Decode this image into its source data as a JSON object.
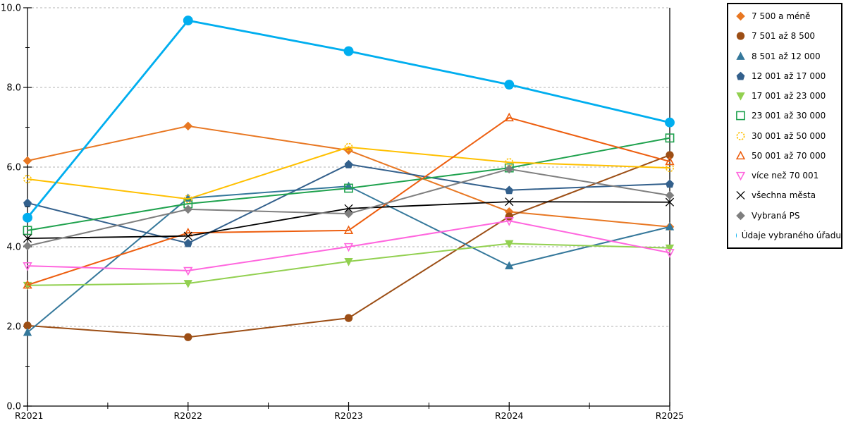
{
  "chart_data": {
    "type": "line",
    "title": "",
    "x_labels": [
      "R2021",
      "R2022",
      "R2023",
      "R2024",
      "R2025"
    ],
    "xlabel": "",
    "ylabel": "",
    "ylim": [
      0,
      10
    ],
    "y_tick_labels": [
      "0.0",
      "2.0",
      "4.0",
      "6.0",
      "8.0",
      "10.0"
    ],
    "y_major_ticks": [
      0,
      2,
      4,
      6,
      8,
      10
    ],
    "y_minor_ticks": [
      1,
      3,
      5,
      7,
      9
    ],
    "grid": "horizontal dashed gray at major ticks",
    "legend_position": "right",
    "axis_color": "#000000",
    "gridline_color": "#b3b3b3",
    "series": [
      {
        "key": "7500-a-mene",
        "name": "7 500 a méně",
        "color": "#E87722",
        "marker": "diamond",
        "filled": true,
        "line_width": 2,
        "values": [
          6.16,
          7.03,
          6.42,
          4.88,
          4.5
        ]
      },
      {
        "key": "7501-az-8500",
        "name": "7 501 až 8 500",
        "color": "#9C4E15",
        "marker": "circle",
        "filled": true,
        "line_width": 2,
        "values": [
          2.02,
          1.73,
          2.21,
          4.76,
          6.3
        ]
      },
      {
        "key": "8501-az-12000",
        "name": "8 501 až 12 000",
        "color": "#35789B",
        "marker": "triangle-up",
        "filled": true,
        "line_width": 2,
        "values": [
          1.85,
          5.22,
          5.52,
          3.52,
          4.5
        ]
      },
      {
        "key": "12001-az-17000",
        "name": "12 001 až 17 000",
        "color": "#33608C",
        "marker": "pentagon",
        "filled": true,
        "line_width": 2,
        "values": [
          5.1,
          4.09,
          6.07,
          5.42,
          5.58
        ]
      },
      {
        "key": "17001-az-23000",
        "name": "17 001 až 23 000",
        "color": "#92D050",
        "marker": "triangle-down",
        "filled": true,
        "line_width": 2,
        "values": [
          3.03,
          3.08,
          3.63,
          4.08,
          3.97
        ]
      },
      {
        "key": "23001-az-30000",
        "name": "23 001 až 30 000",
        "color": "#1FA24E",
        "marker": "square",
        "filled": false,
        "line_width": 2,
        "values": [
          4.41,
          5.08,
          5.47,
          5.98,
          6.73
        ]
      },
      {
        "key": "30001-az-50000",
        "name": "30 001 až 50 000",
        "color": "#FFC000",
        "marker": "circle",
        "filled": false,
        "line_width": 2,
        "values": [
          5.7,
          5.2,
          6.5,
          6.12,
          5.98
        ]
      },
      {
        "key": "50001-az-70000",
        "name": "50 001 až 70 000",
        "color": "#ED5E0F",
        "marker": "triangle-up",
        "filled": false,
        "line_width": 2,
        "values": [
          3.04,
          4.35,
          4.41,
          7.24,
          6.14
        ]
      },
      {
        "key": "vice-nez-70001",
        "name": "více než 70 001",
        "color": "#FF66DE",
        "marker": "triangle-down",
        "filled": false,
        "line_width": 2,
        "values": [
          3.52,
          3.4,
          4.0,
          4.65,
          3.85
        ]
      },
      {
        "key": "vsechna-mesta",
        "name": "všechna města",
        "color": "#000000",
        "marker": "x",
        "filled": false,
        "line_width": 1.8,
        "values": [
          4.21,
          4.27,
          4.96,
          5.13,
          5.12
        ]
      },
      {
        "key": "vybrana-ps",
        "name": "Vybraná PS",
        "color": "#7F7F7F",
        "marker": "diamond",
        "filled": true,
        "line_width": 2,
        "values": [
          4.02,
          4.94,
          4.83,
          5.95,
          5.29
        ]
      },
      {
        "key": "udaje-vybraneho-uradu",
        "name": "Údaje vybraného úřadu",
        "color": "#00AEEF",
        "marker": "circle",
        "filled": true,
        "line_width": 2.8,
        "values": [
          4.73,
          9.68,
          8.91,
          8.07,
          7.12
        ],
        "marker_size": "large"
      }
    ]
  }
}
